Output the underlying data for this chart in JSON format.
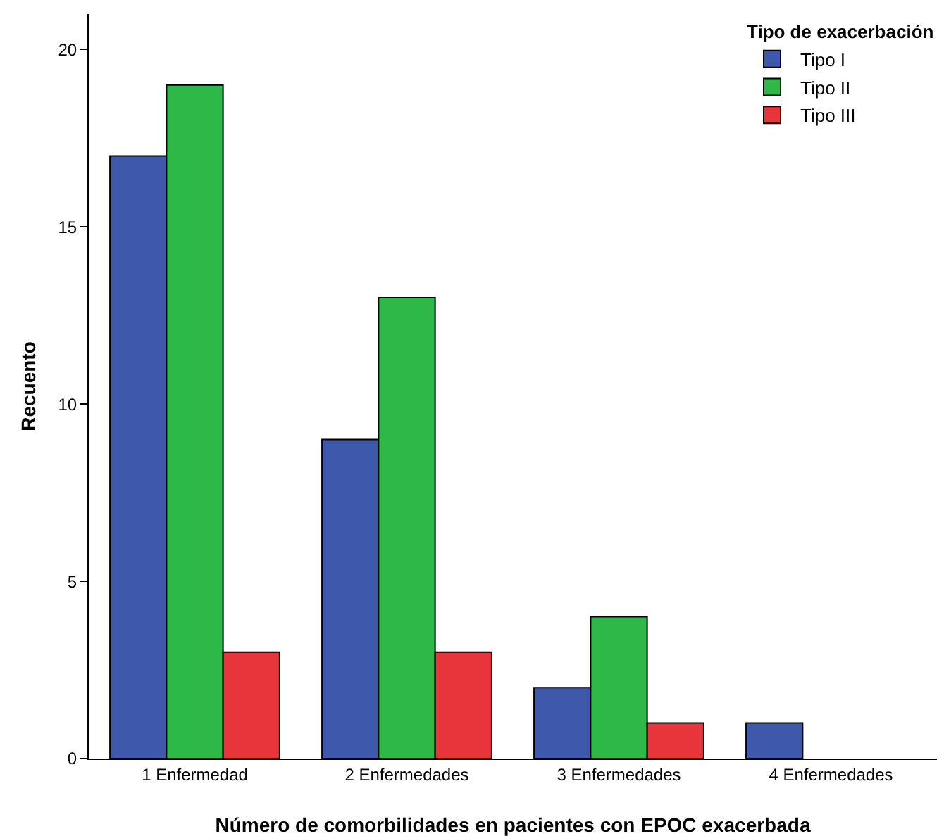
{
  "chart_data": {
    "type": "bar",
    "xlabel": "Número de comorbilidades en pacientes con EPOC exacerbada",
    "ylabel": "Recuento",
    "legend_title": "Tipo de exacerbación",
    "legend": "top right",
    "grid": false,
    "categories": [
      "1 Enfermedad",
      "2 Enfermedades",
      "3 Enfermedades",
      "4 Enfermedades"
    ],
    "ylim": [
      0,
      21
    ],
    "yticks": [
      0,
      5,
      10,
      15,
      20
    ],
    "series": [
      {
        "name": "Tipo I",
        "color": "#3e58ac",
        "values": [
          17,
          9,
          2,
          1
        ]
      },
      {
        "name": "Tipo II",
        "color": "#2eb848",
        "values": [
          19,
          13,
          4,
          null
        ]
      },
      {
        "name": "Tipo III",
        "color": "#e8353b",
        "values": [
          3,
          3,
          1,
          null
        ]
      }
    ]
  }
}
